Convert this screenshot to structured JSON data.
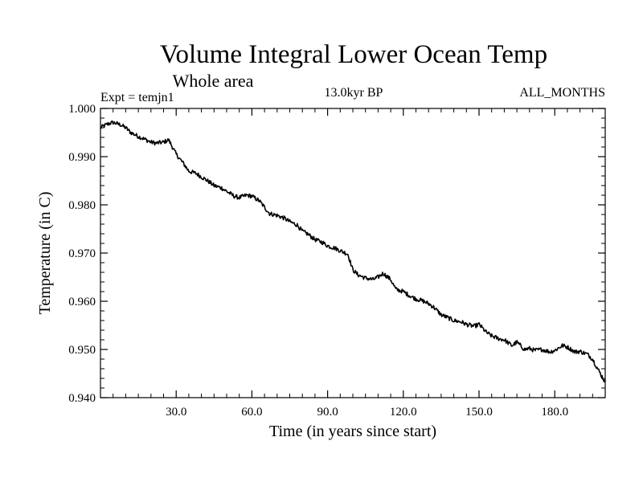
{
  "chart_data": {
    "type": "line",
    "title": "Volume Integral Lower Ocean Temp",
    "subtitle": "Whole area",
    "experiment_label": "Expt = temjn1",
    "period_label": "13.0kyr BP",
    "months_label": "ALL_MONTHS",
    "xlabel": "Time (in years since start)",
    "ylabel": "Temperature (in C)",
    "xlim": [
      0,
      200
    ],
    "ylim": [
      0.94,
      1.0
    ],
    "x_ticks": [
      30,
      60,
      90,
      120,
      150,
      180
    ],
    "x_tick_labels": [
      "30.0",
      "60.0",
      "90.0",
      "120.0",
      "150.0",
      "180.0"
    ],
    "y_ticks": [
      0.94,
      0.95,
      0.96,
      0.97,
      0.98,
      0.99,
      1.0
    ],
    "y_tick_labels": [
      "0.940",
      "0.950",
      "0.960",
      "0.970",
      "0.980",
      "0.990",
      "1.000"
    ],
    "grid": false,
    "series": [
      {
        "name": "temjn1",
        "color": "#000000",
        "x": [
          0,
          3,
          5,
          8,
          10,
          12,
          15,
          18,
          20,
          22,
          25,
          27,
          30,
          33,
          35,
          38,
          40,
          43,
          45,
          48,
          50,
          53,
          55,
          58,
          60,
          63,
          65,
          67,
          70,
          73,
          75,
          78,
          80,
          82,
          85,
          88,
          90,
          93,
          95,
          98,
          100,
          102,
          105,
          108,
          110,
          112,
          115,
          117,
          120,
          123,
          125,
          128,
          130,
          132,
          135,
          138,
          140,
          143,
          145,
          148,
          150,
          153,
          155,
          158,
          160,
          163,
          165,
          168,
          170,
          172,
          175,
          178,
          180,
          183,
          185,
          188,
          190,
          193,
          195,
          197,
          200
        ],
        "values": [
          0.996,
          0.9968,
          0.9971,
          0.9966,
          0.996,
          0.995,
          0.9942,
          0.9935,
          0.993,
          0.9928,
          0.993,
          0.9935,
          0.9905,
          0.9885,
          0.987,
          0.9865,
          0.9858,
          0.9848,
          0.984,
          0.9835,
          0.9828,
          0.9818,
          0.9815,
          0.982,
          0.9818,
          0.9808,
          0.9795,
          0.9782,
          0.9778,
          0.9772,
          0.9765,
          0.9758,
          0.9745,
          0.974,
          0.9728,
          0.9722,
          0.9715,
          0.971,
          0.9705,
          0.9698,
          0.9665,
          0.9655,
          0.9648,
          0.9645,
          0.965,
          0.9658,
          0.9645,
          0.9625,
          0.962,
          0.961,
          0.9605,
          0.96,
          0.9595,
          0.9588,
          0.9572,
          0.9565,
          0.956,
          0.9557,
          0.9552,
          0.9548,
          0.9552,
          0.9535,
          0.9528,
          0.9522,
          0.952,
          0.9508,
          0.9515,
          0.95,
          0.9502,
          0.9498,
          0.95,
          0.9495,
          0.9498,
          0.9508,
          0.9505,
          0.9495,
          0.9496,
          0.949,
          0.948,
          0.946,
          0.9432
        ]
      }
    ]
  }
}
